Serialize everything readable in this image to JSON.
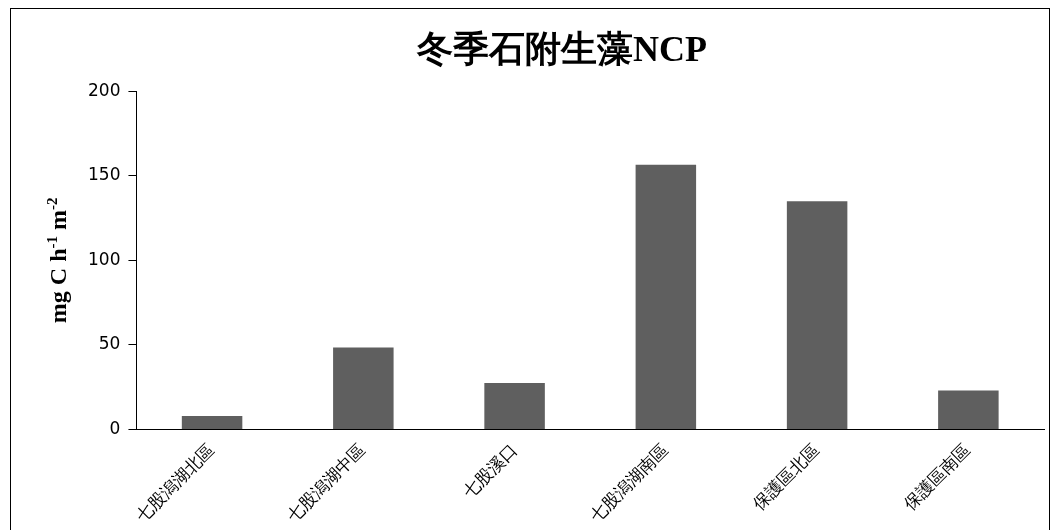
{
  "chart_data": {
    "type": "bar",
    "title": "冬季石附生藻NCP",
    "ylabel": "mg C h$^{-1}$ m$^{-2}$",
    "categories": [
      "七股潟湖北區",
      "七股潟湖中區",
      "七股溪口",
      "七股潟湖南區",
      "保護區北區",
      "保護區南區"
    ],
    "values": [
      8,
      48.5,
      27.5,
      156.5,
      135,
      23
    ],
    "color": "#5f5f5f",
    "ylim": [
      0,
      200
    ],
    "yticks": [
      0,
      50,
      100,
      150,
      200
    ],
    "grid": false,
    "legend": false
  }
}
